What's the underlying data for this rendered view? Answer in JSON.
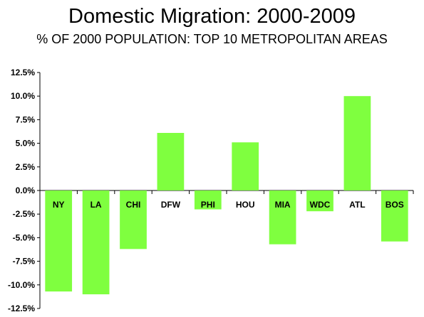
{
  "chart_data": {
    "type": "bar",
    "title": "Domestic Migration: 2000-2009",
    "subtitle": "% OF 2000 POPULATION: TOP 10 METROPOLITAN AREAS",
    "categories": [
      "NY",
      "LA",
      "CHI",
      "DFW",
      "PHI",
      "HOU",
      "MIA",
      "WDC",
      "ATL",
      "BOS"
    ],
    "values": [
      -10.7,
      -11.0,
      -6.2,
      6.1,
      -2.0,
      5.1,
      -5.7,
      -2.2,
      10.0,
      -5.4
    ],
    "ylim": [
      -12.5,
      12.5
    ],
    "yticks": [
      "12.5%",
      "10.0%",
      "7.5%",
      "5.0%",
      "2.5%",
      "0.0%",
      "-2.5%",
      "-5.0%",
      "-7.5%",
      "-10.0%",
      "-12.5%"
    ],
    "ytick_values": [
      12.5,
      10,
      7.5,
      5,
      2.5,
      0,
      -2.5,
      -5,
      -7.5,
      -10,
      -12.5
    ],
    "grid": false,
    "legend": "none",
    "bar_color": "#7fff3f"
  }
}
